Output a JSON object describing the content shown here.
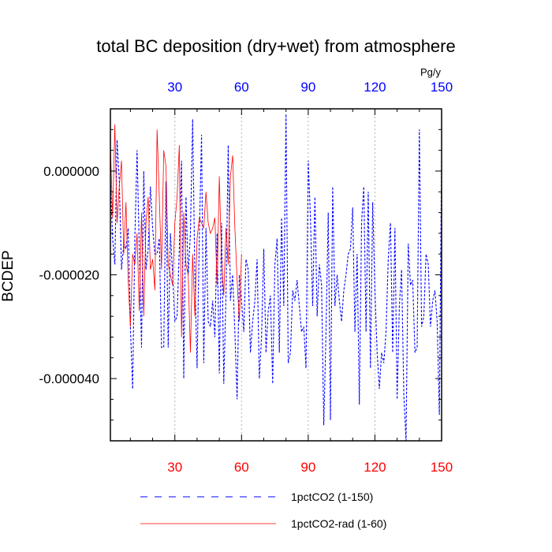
{
  "chart_data": {
    "type": "line",
    "title": "total BC deposition (dry+wet) from atmosphere",
    "ylabel": "BCDEP",
    "top_axis_units": "Pg/y",
    "xlim": [
      1,
      150
    ],
    "ylim": [
      -5.2e-05,
      1.2e-05
    ],
    "grid": "vertical dashed at x ticks",
    "bottom_axis": {
      "ticks": [
        30,
        60,
        90,
        120,
        150
      ],
      "labels": [
        "30",
        "60",
        "90",
        "120",
        "150"
      ],
      "color": "#ff0000"
    },
    "top_axis": {
      "ticks": [
        30,
        60,
        90,
        120,
        150
      ],
      "labels": [
        "30",
        "60",
        "90",
        "120",
        "150"
      ],
      "color": "#0000ff"
    },
    "left_axis": {
      "ticks": [
        0.0,
        -2e-05,
        -4e-05
      ],
      "labels": [
        "0.000000",
        "-0.000020",
        "-0.000040"
      ]
    },
    "legend_placement": "bottom",
    "series": [
      {
        "name": "1pctCO2 (1-150)",
        "color": "#0000ff",
        "style": "dashed",
        "x_start": 1,
        "values": [
          -2e-06,
          -1.3e-05,
          -1.8e-05,
          6e-06,
          -2e-06,
          -1.9e-05,
          -1.4e-05,
          -1.5e-05,
          -1.1e-05,
          -3e-05,
          -4.2e-05,
          -1.3e-05,
          4e-06,
          -1.5e-05,
          -3.4e-05,
          0.0,
          -1.9e-05,
          -1.5e-05,
          -3e-06,
          -1.1e-05,
          -1.6e-05,
          -1.6e-05,
          -1.3e-05,
          -3.4e-05,
          -3.4e-05,
          -2e-06,
          -3.4e-05,
          -1.2e-05,
          -2e-05,
          -2.9e-05,
          -2.8e-05,
          -1.5e-05,
          2e-06,
          -4e-05,
          -5e-06,
          -2e-05,
          -1.2e-05,
          1e-05,
          -2e-05,
          -3.8e-05,
          -1.3e-05,
          7e-06,
          -3.7e-05,
          -1.1e-05,
          -2.9e-05,
          -3e-05,
          -2.5e-05,
          -3.2e-05,
          -1.2e-05,
          -3.9e-05,
          -1e-05,
          -4.1e-05,
          -2.4e-05,
          5e-06,
          -2.5e-05,
          -2e-05,
          -3.1e-05,
          -4.4e-05,
          -2e-05,
          -2.5e-05,
          -3.1e-05,
          -1.7e-05,
          -1.9e-05,
          -3.5e-05,
          -2.9e-05,
          -2.5e-05,
          -1.7e-05,
          -4e-05,
          -3.2e-05,
          -1.5e-05,
          -3.5e-05,
          -2.7e-05,
          -2.4e-05,
          -4.1e-05,
          -1.8e-05,
          -1.3e-05,
          -3.5e-05,
          -9e-06,
          -2.6e-05,
          1.1e-05,
          -3.7e-05,
          -3.5e-05,
          -2.3e-05,
          -2.5e-05,
          -2.1e-05,
          -2.6e-05,
          -3.1e-05,
          -3e-05,
          -3.8e-05,
          2e-06,
          -9e-06,
          -2.6e-05,
          -5e-06,
          -2.8e-05,
          -1.8e-05,
          -2.2e-05,
          -4.9e-05,
          -3.1e-05,
          -8e-06,
          -4.8e-05,
          -3e-06,
          -2.6e-05,
          -2e-05,
          -2.5e-05,
          -2.9e-05,
          -2.3e-05,
          -2e-05,
          -1.6e-05,
          -1.5e-05,
          -7e-06,
          -3.1e-05,
          -1.6e-05,
          -4.5e-05,
          -1e-05,
          -3e-06,
          -3.1e-05,
          -4e-06,
          -3.8e-05,
          -6e-06,
          -2.3e-05,
          -3.5e-05,
          -4.2e-05,
          -3.5e-05,
          -3.7e-05,
          -3.1e-05,
          -1.7e-05,
          -1e-05,
          -3.5e-05,
          -1.1e-05,
          -4.4e-05,
          -2.6e-05,
          -1.9e-05,
          -4.3e-05,
          -5.2e-05,
          -1.4e-05,
          -2.2e-05,
          -2.1e-05,
          -3.5e-05,
          -3.4e-05,
          8e-06,
          -3e-05,
          -2.8e-05,
          -1.6e-05,
          -1.8e-05,
          -3e-05,
          -2.5e-05,
          -2.3e-05,
          -2.9e-05,
          -4.7e-05,
          3e-06
        ]
      },
      {
        "name": "1pctCO2-rad (1-60)",
        "color": "#ff0000",
        "style": "solid",
        "x_start": 1,
        "values": [
          5e-06,
          -9e-06,
          9e-06,
          -1e-05,
          -3e-06,
          2e-06,
          -1.6e-05,
          -6e-06,
          -2.1e-05,
          -3e-05,
          -1.6e-05,
          -1.8e-05,
          -1.2e-05,
          -2.7e-05,
          -8e-06,
          -2.8e-05,
          -1e-05,
          -5e-06,
          -1.9e-05,
          -1.7e-05,
          -2.3e-05,
          8e-06,
          -5e-06,
          -1.9e-05,
          4e-06,
          1e-06,
          -1.8e-05,
          -2e-05,
          -2.2e-05,
          -1e-05,
          -5e-06,
          5e-06,
          -3.2e-05,
          -8e-06,
          -1.8e-05,
          -2e-05,
          -3.5e-05,
          -1.6e-05,
          -2.8e-05,
          -1.3e-05,
          -9e-06,
          -1e-05,
          -1.1e-05,
          -4e-06,
          -1e-05,
          -1.2e-05,
          -1.1e-05,
          -9e-06,
          -2.2e-05,
          -1e-06,
          -1.7e-05,
          -2.4e-05,
          -1.1e-05,
          -1.8e-05,
          -1e-06,
          3e-06,
          -1.1e-05,
          -2.1e-05,
          -2.9e-05,
          -1.6e-05
        ]
      }
    ]
  }
}
